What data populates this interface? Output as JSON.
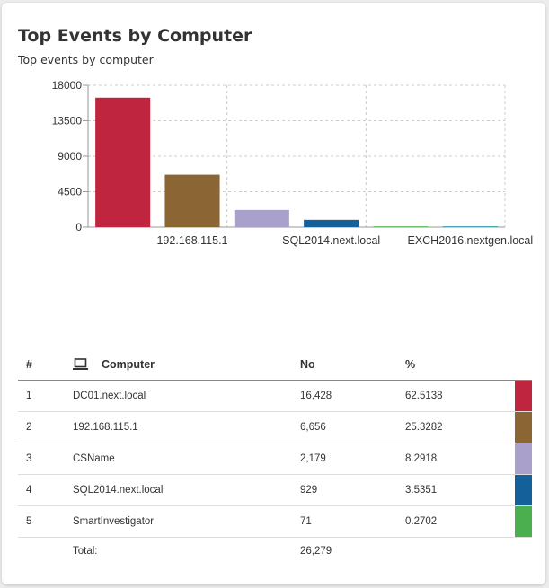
{
  "widget": {
    "title": "Top Events by Computer",
    "subtitle": "Top events by computer"
  },
  "chart_data": {
    "type": "bar",
    "categories": [
      "DC01.next.local",
      "192.168.115.1",
      "CSName",
      "SQL2014.next.local",
      "SmartInvestigator",
      "EXCH2016.nextgen.local"
    ],
    "values": [
      16428,
      6656,
      2179,
      929,
      71,
      16
    ],
    "colors": [
      "#c0253f",
      "#8b6634",
      "#a9a1cc",
      "#14609a",
      "#4bae4f",
      "#1f8fa8"
    ],
    "x_tick_labels_shown": [
      "192.168.115.1",
      "SQL2014.next.local",
      "EXCH2016.nextgen.local"
    ],
    "y_ticks": [
      "18000",
      "13500",
      "9000",
      "4500",
      "0"
    ],
    "ylim": [
      0,
      18000
    ],
    "grid": true
  },
  "table": {
    "headers": {
      "num": "#",
      "computer": "Computer",
      "no": "No",
      "pct": "%"
    },
    "computer_icon": "laptop-icon",
    "rows": [
      {
        "num": "1",
        "computer": "DC01.next.local",
        "no": "16,428",
        "pct": "62.5138",
        "color": "#c0253f"
      },
      {
        "num": "2",
        "computer": "192.168.115.1",
        "no": "6,656",
        "pct": "25.3282",
        "color": "#8b6634"
      },
      {
        "num": "3",
        "computer": "CSName",
        "no": "2,179",
        "pct": "8.2918",
        "color": "#a9a1cc"
      },
      {
        "num": "4",
        "computer": "SQL2014.next.local",
        "no": "929",
        "pct": "3.5351",
        "color": "#14609a"
      },
      {
        "num": "5",
        "computer": "SmartInvestigator",
        "no": "71",
        "pct": "0.2702",
        "color": "#4bae4f"
      }
    ],
    "total_label": "Total:",
    "total_value": "26,279"
  }
}
